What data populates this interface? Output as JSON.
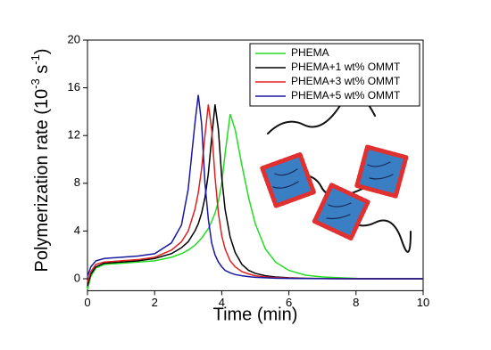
{
  "chart_data": {
    "type": "line",
    "x_label": "Time (min)",
    "y_label": [
      "Polymerization rate (10",
      "-3",
      " s",
      "-1",
      ")"
    ],
    "x": [
      0,
      0.1,
      0.25,
      0.5,
      1,
      1.5,
      2,
      2.5,
      2.8,
      3.0,
      3.2,
      3.3,
      3.4,
      3.5,
      3.6,
      3.7,
      3.8,
      3.9,
      4.0,
      4.1,
      4.25,
      4.4,
      4.6,
      4.8,
      5.0,
      5.3,
      5.6,
      6.0,
      6.5,
      7,
      8,
      9,
      10
    ],
    "series": [
      {
        "name": "PHEMA",
        "color": "#22dd22",
        "values": [
          -0.9,
          0.2,
          0.9,
          1.2,
          1.3,
          1.4,
          1.5,
          1.8,
          2.1,
          2.4,
          2.8,
          3.1,
          3.4,
          3.8,
          4.2,
          4.8,
          5.5,
          6.5,
          8.0,
          10.5,
          13.8,
          12.5,
          9.5,
          6.8,
          4.6,
          2.5,
          1.4,
          0.7,
          0.3,
          0.15,
          0.03,
          0,
          0
        ]
      },
      {
        "name": "PHEMA+1 wt% OMMT",
        "color": "#000000",
        "values": [
          -0.6,
          0.4,
          1.0,
          1.3,
          1.4,
          1.5,
          1.7,
          2.1,
          2.6,
          3.1,
          4.0,
          4.6,
          5.5,
          6.8,
          8.8,
          11.8,
          14.6,
          12.5,
          8.5,
          5.8,
          3.5,
          2.2,
          1.2,
          0.7,
          0.45,
          0.25,
          0.15,
          0.08,
          0.04,
          0.02,
          0,
          0,
          0
        ]
      },
      {
        "name": "PHEMA+3 wt% OMMT",
        "color": "#e02020",
        "values": [
          -0.3,
          0.6,
          1.2,
          1.4,
          1.5,
          1.6,
          1.8,
          2.4,
          3.1,
          4.0,
          5.8,
          7.2,
          9.2,
          12.0,
          14.6,
          12.5,
          8.5,
          5.5,
          3.6,
          2.5,
          1.5,
          1.0,
          0.6,
          0.4,
          0.25,
          0.15,
          0.1,
          0.06,
          0.03,
          0.02,
          0,
          0,
          0
        ]
      },
      {
        "name": "PHEMA+5 wt% OMMT",
        "color": "#1a1aa0",
        "values": [
          0.2,
          1.0,
          1.5,
          1.7,
          1.8,
          1.9,
          2.1,
          3.0,
          4.5,
          7.5,
          13,
          15.4,
          13,
          8,
          5,
          3,
          2,
          1.4,
          1.0,
          0.7,
          0.5,
          0.35,
          0.25,
          0.18,
          0.12,
          0.08,
          0.05,
          0.03,
          0.02,
          0.01,
          0,
          0,
          0
        ]
      }
    ],
    "xlim": [
      0,
      10
    ],
    "xticks": [
      0,
      2,
      4,
      6,
      8,
      10
    ],
    "ylim": [
      -1,
      20
    ],
    "yticks": [
      0,
      4,
      8,
      12,
      16,
      20
    ],
    "legend": "upper right"
  }
}
